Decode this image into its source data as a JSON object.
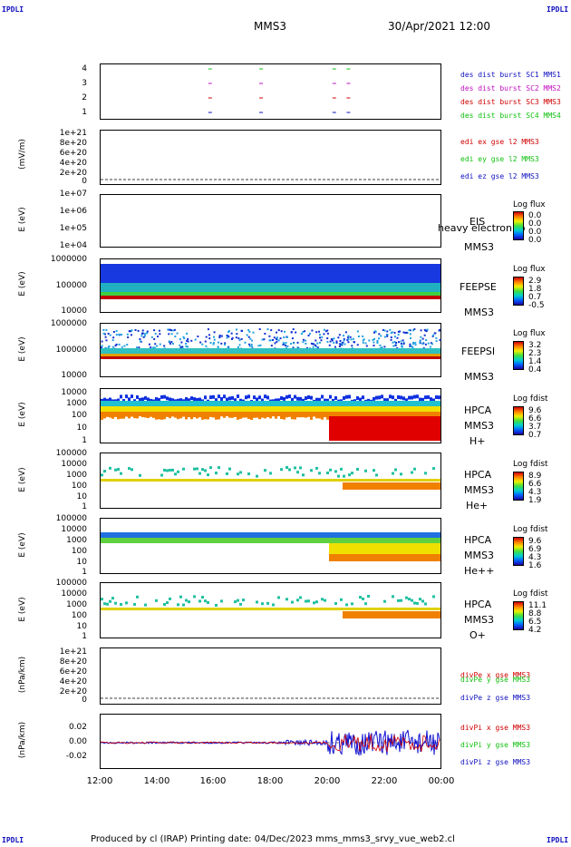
{
  "corners": {
    "tl": "IPDLI",
    "tr": "IPDLI",
    "bl": "IPDLI",
    "br": "IPDLI"
  },
  "header": {
    "title": "MMS3",
    "datetime": "30/Apr/2021 12:00"
  },
  "footer": {
    "text": "Produced by cl (IRAP)   Printing date: 04/Dec/2023   mms_mms3_srvy_vue_web2.cl"
  },
  "chart_data": [
    {
      "type": "scatter",
      "id": "burst",
      "yticks": [
        "4",
        "3",
        "2",
        "1"
      ],
      "legend": [
        {
          "text": "des dist burst SC1 MMS1",
          "color": "#1010c0"
        },
        {
          "text": "des dist burst SC2 MMS2",
          "color": "#c010c0"
        },
        {
          "text": "des dist burst SC3 MMS3",
          "color": "#d00000"
        },
        {
          "text": "des dist burst SC4 MMS4",
          "color": "#10c010"
        }
      ],
      "x": [
        "15:52",
        "17:40",
        "20:15",
        "20:45"
      ]
    },
    {
      "type": "line",
      "id": "edi",
      "ylabel": "(mV/m)",
      "yticks": [
        "1e+21",
        "8e+20",
        "6e+20",
        "4e+20",
        "2e+20",
        "0"
      ],
      "legend": [
        {
          "text": "edi ex gse l2 MMS3",
          "color": "#d00000"
        },
        {
          "text": "edi ey gse l2 MMS3",
          "color": "#10c010"
        },
        {
          "text": "edi ez gse l2 MMS3",
          "color": "#1010c0"
        }
      ]
    },
    {
      "type": "heatmap",
      "id": "eis",
      "ylabel": "E (eV)",
      "yticks": [
        "1e+07",
        "1e+06",
        "1e+05",
        "1e+04"
      ],
      "instrument": [
        "EIS",
        "MMS3"
      ],
      "overlay": "heavy electron to",
      "colorbar": {
        "title": "Log flux",
        "ticks": [
          "0.0",
          "0.0",
          "0.0",
          "0.0"
        ]
      }
    },
    {
      "type": "heatmap",
      "id": "feepse",
      "ylabel": "E (eV)",
      "yticks": [
        "1000000",
        "100000",
        "10000"
      ],
      "instrument": [
        "FEEPSE",
        "MMS3"
      ],
      "colorbar": {
        "title": "Log flux",
        "ticks": [
          "2.9",
          "1.8",
          "0.7",
          "-0.5"
        ]
      }
    },
    {
      "type": "heatmap",
      "id": "feepsi",
      "ylabel": "E (eV)",
      "yticks": [
        "1000000",
        "100000",
        "10000"
      ],
      "instrument": [
        "FEEPSI",
        "MMS3"
      ],
      "colorbar": {
        "title": "Log flux",
        "ticks": [
          "3.2",
          "2.3",
          "1.4",
          "0.4"
        ]
      }
    },
    {
      "type": "heatmap",
      "id": "hpca_h",
      "ylabel": "E (eV)",
      "yticks": [
        "10000",
        "1000",
        "100",
        "10",
        "1"
      ],
      "instrument": [
        "HPCA",
        "MMS3",
        "H+"
      ],
      "colorbar": {
        "title": "Log fdist",
        "ticks": [
          "9.6",
          "6.6",
          "3.7",
          "0.7"
        ]
      }
    },
    {
      "type": "heatmap",
      "id": "hpca_he",
      "ylabel": "E (eV)",
      "yticks": [
        "100000",
        "10000",
        "1000",
        "100",
        "10",
        "1"
      ],
      "instrument": [
        "HPCA",
        "MMS3",
        "He+"
      ],
      "colorbar": {
        "title": "Log fdist",
        "ticks": [
          "8.9",
          "6.6",
          "4.3",
          "1.9"
        ]
      }
    },
    {
      "type": "heatmap",
      "id": "hpca_hepp",
      "ylabel": "E (eV)",
      "yticks": [
        "100000",
        "10000",
        "1000",
        "100",
        "10",
        "1"
      ],
      "instrument": [
        "HPCA",
        "MMS3",
        "He++"
      ],
      "colorbar": {
        "title": "Log fdist",
        "ticks": [
          "9.6",
          "6.9",
          "4.3",
          "1.6"
        ]
      }
    },
    {
      "type": "heatmap",
      "id": "hpca_o",
      "ylabel": "E (eV)",
      "yticks": [
        "100000",
        "10000",
        "1000",
        "100",
        "10",
        "1"
      ],
      "instrument": [
        "HPCA",
        "MMS3",
        "O+"
      ],
      "colorbar": {
        "title": "Log fdist",
        "ticks": [
          "11.1",
          "8.8",
          "6.5",
          "4.2"
        ]
      }
    },
    {
      "type": "line",
      "id": "divpe",
      "ylabel": "(nPa/km)",
      "yticks": [
        "1e+21",
        "8e+20",
        "6e+20",
        "4e+20",
        "2e+20",
        "0"
      ],
      "legend": [
        {
          "text": "divPe x gse MMS3",
          "color": "#d00000"
        },
        {
          "text": "divPe y gse MMS3",
          "color": "#10c010"
        },
        {
          "text": "divPe z gse MMS3",
          "color": "#1010c0"
        }
      ]
    },
    {
      "type": "line",
      "id": "divpi",
      "ylabel": "(nPa/km)",
      "yticks": [
        "0.02",
        "0.00",
        "-0.02"
      ],
      "ylim": [
        -0.03,
        0.03
      ],
      "legend": [
        {
          "text": "divPi x gse MMS3",
          "color": "#d00000"
        },
        {
          "text": "divPi y gse MMS3",
          "color": "#10c010"
        },
        {
          "text": "divPi z gse MMS3",
          "color": "#1010c0"
        }
      ]
    }
  ],
  "xaxis": {
    "ticks": [
      "12:00",
      "14:00",
      "16:00",
      "18:00",
      "20:00",
      "22:00",
      "00:00"
    ]
  }
}
